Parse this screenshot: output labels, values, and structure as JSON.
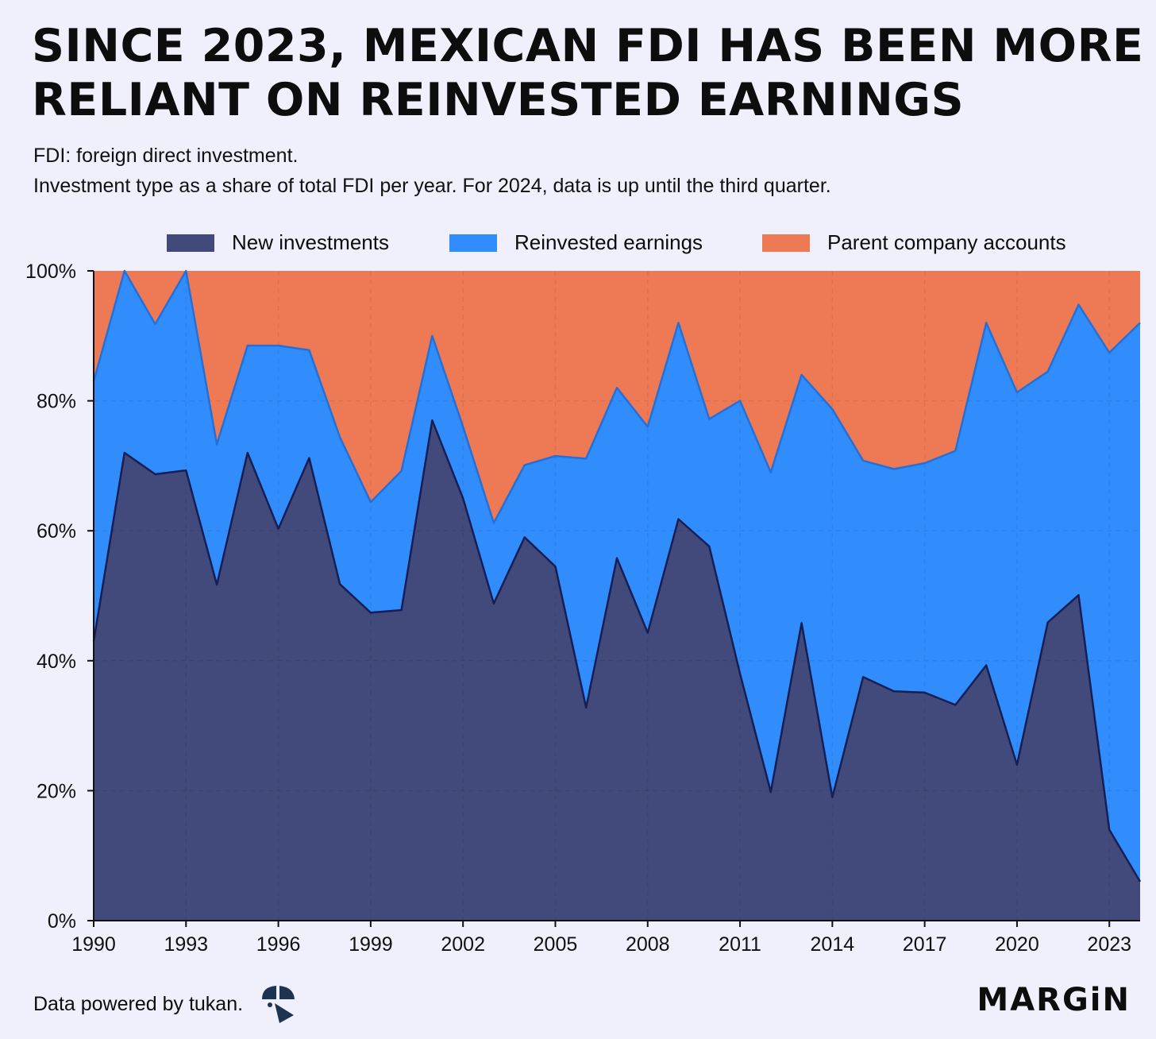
{
  "title_lines": [
    "SINCE 2023, MEXICAN FDI HAS BEEN MORE",
    "RELIANT ON REINVESTED EARNINGS"
  ],
  "subtitle_lines": [
    "FDI: foreign direct investment.",
    "Investment type as a share of total FDI per year. For 2024, data is up until the third quarter."
  ],
  "footer": {
    "source": "Data powered by tukan.",
    "brand": "MARGiN"
  },
  "colors": {
    "background": "#f0effc",
    "new_investments": "#414a7a",
    "reinvested_earnings": "#318dfb",
    "parent_company_accounts": "#ee7955",
    "new_line": "#161f55",
    "reinvested_line": "#2370d8"
  },
  "chart_data": {
    "type": "area",
    "stacked": true,
    "title": "SINCE 2023, MEXICAN FDI HAS BEEN MORE RELIANT ON REINVESTED EARNINGS",
    "x": [
      1990,
      1991,
      1992,
      1993,
      1994,
      1995,
      1996,
      1997,
      1998,
      1999,
      2000,
      2001,
      2002,
      2003,
      2004,
      2005,
      2006,
      2007,
      2008,
      2009,
      2010,
      2011,
      2012,
      2013,
      2014,
      2015,
      2016,
      2017,
      2018,
      2019,
      2020,
      2021,
      2022,
      2023,
      2024
    ],
    "x_ticks": [
      1990,
      1993,
      1996,
      1999,
      2002,
      2005,
      2008,
      2011,
      2014,
      2017,
      2020,
      2023
    ],
    "y_ticks": [
      "0%",
      "20%",
      "40%",
      "60%",
      "80%",
      "100%"
    ],
    "ylim": [
      0,
      100
    ],
    "legend_position": "top",
    "series": [
      {
        "name": "New investments",
        "values": [
          43,
          72,
          68.7,
          69.3,
          51.7,
          72,
          60.3,
          71.2,
          51.8,
          47.4,
          47.8,
          77,
          65,
          48.8,
          59,
          54.5,
          32.8,
          55.8,
          44.3,
          61.8,
          57.6,
          38,
          19.8,
          45.8,
          19,
          37.5,
          35.3,
          35.1,
          33.2,
          39.3,
          24,
          45.9,
          50.1,
          14,
          6
        ]
      },
      {
        "name": "Reinvested earnings",
        "values": [
          40,
          28,
          23.1,
          30.7,
          21.6,
          16.5,
          28.2,
          16.6,
          22.6,
          17,
          21.4,
          13,
          11,
          12.4,
          11.1,
          17,
          38.3,
          26.2,
          31.7,
          30.2,
          19.6,
          42,
          49.2,
          38.2,
          59.7,
          33.3,
          34.2,
          35.3,
          39.1,
          52.7,
          57.3,
          38.6,
          44.7,
          73.4,
          86
        ]
      },
      {
        "name": "Parent company accounts",
        "values": [
          17,
          0,
          8.2,
          0,
          26.7,
          11.5,
          11.5,
          12.2,
          25.6,
          35.6,
          30.8,
          10,
          24,
          38.8,
          29.9,
          28.5,
          28.9,
          18,
          24,
          8,
          22.8,
          20,
          31,
          16,
          21.3,
          29.2,
          30.5,
          29.6,
          27.7,
          8,
          18.7,
          15.5,
          5.2,
          12.6,
          8
        ]
      }
    ]
  }
}
